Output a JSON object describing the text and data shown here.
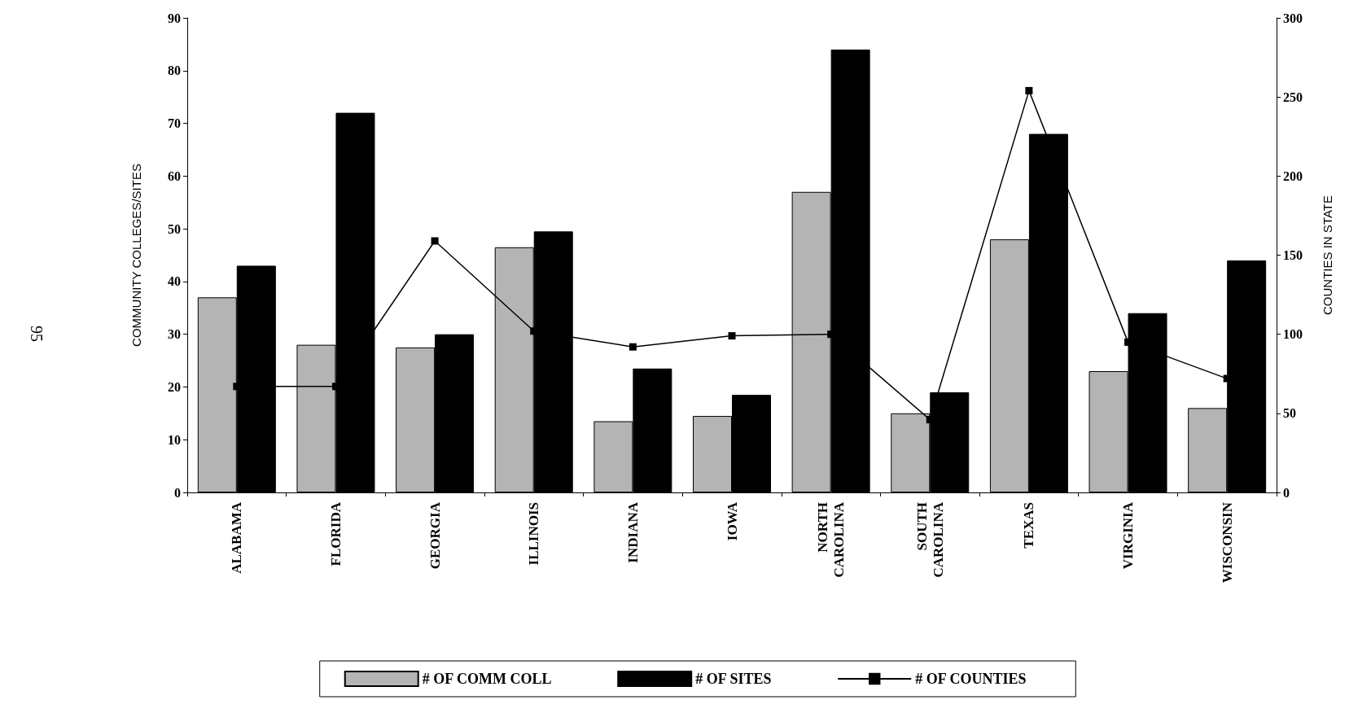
{
  "chart_data": {
    "type": "bar",
    "ylabel": "COMMUNITY COLLEGES/SITES",
    "y2label": "COUNTIES IN STATE",
    "categories": [
      "ALABAMA",
      "FLORIDA",
      "GEORGIA",
      "ILLINOIS",
      "INDIANA",
      "IOWA",
      "NORTH\nCAROLINA",
      "SOUTH\nCAROLINA",
      "TEXAS",
      "VIRGINIA",
      "WISCONSIN"
    ],
    "series": [
      {
        "name": "# OF COMM COLL",
        "color": "#b4b4b4",
        "values": [
          37,
          28,
          27.5,
          46.5,
          13.5,
          14.5,
          57,
          15,
          48,
          23,
          16
        ]
      },
      {
        "name": "# OF SITES",
        "color": "#000000",
        "values": [
          43,
          72,
          30,
          49.5,
          23.5,
          18.5,
          84,
          19,
          68,
          34,
          44
        ]
      },
      {
        "name": "# OF COUNTIES",
        "type": "line",
        "axis": "y2",
        "color": "#000000",
        "values": [
          67,
          67,
          159,
          102,
          92,
          99,
          100,
          46,
          254,
          95,
          72
        ]
      }
    ],
    "ylim": [
      0,
      90
    ],
    "yticks": [
      0,
      10,
      20,
      30,
      40,
      50,
      60,
      70,
      80,
      90
    ],
    "y2lim": [
      0,
      300
    ],
    "y2ticks": [
      0,
      50,
      100,
      150,
      200,
      250,
      300
    ],
    "grid": false,
    "legend": "bottom",
    "marker": "square",
    "line_style": "solid",
    "annotations": [
      "95"
    ]
  }
}
